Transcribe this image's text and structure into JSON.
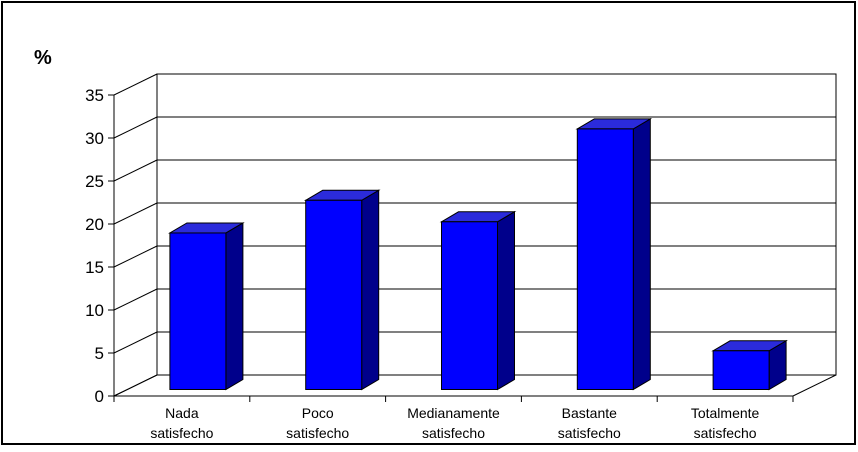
{
  "chart_data": {
    "type": "bar",
    "title": "",
    "xlabel": "",
    "ylabel": "%",
    "ylim": [
      0,
      35
    ],
    "yticks": [
      "0",
      "5",
      "10",
      "15",
      "20",
      "25",
      "30",
      "35"
    ],
    "grid": true,
    "legend": "none",
    "categories": [
      [
        "Nada",
        "satisfecho"
      ],
      [
        "Poco",
        "satisfecho"
      ],
      [
        "Medianamente",
        "satisfecho"
      ],
      [
        "Bastante",
        "satisfecho"
      ],
      [
        "Totalmente",
        "satisfecho"
      ]
    ],
    "values": [
      18.9,
      22.7,
      20.2,
      31.0,
      5.2
    ],
    "colors": {
      "bar_front": "#0000ff",
      "bar_top": "#2b2bdb",
      "bar_side": "#00008b",
      "gridline": "#000000"
    }
  }
}
